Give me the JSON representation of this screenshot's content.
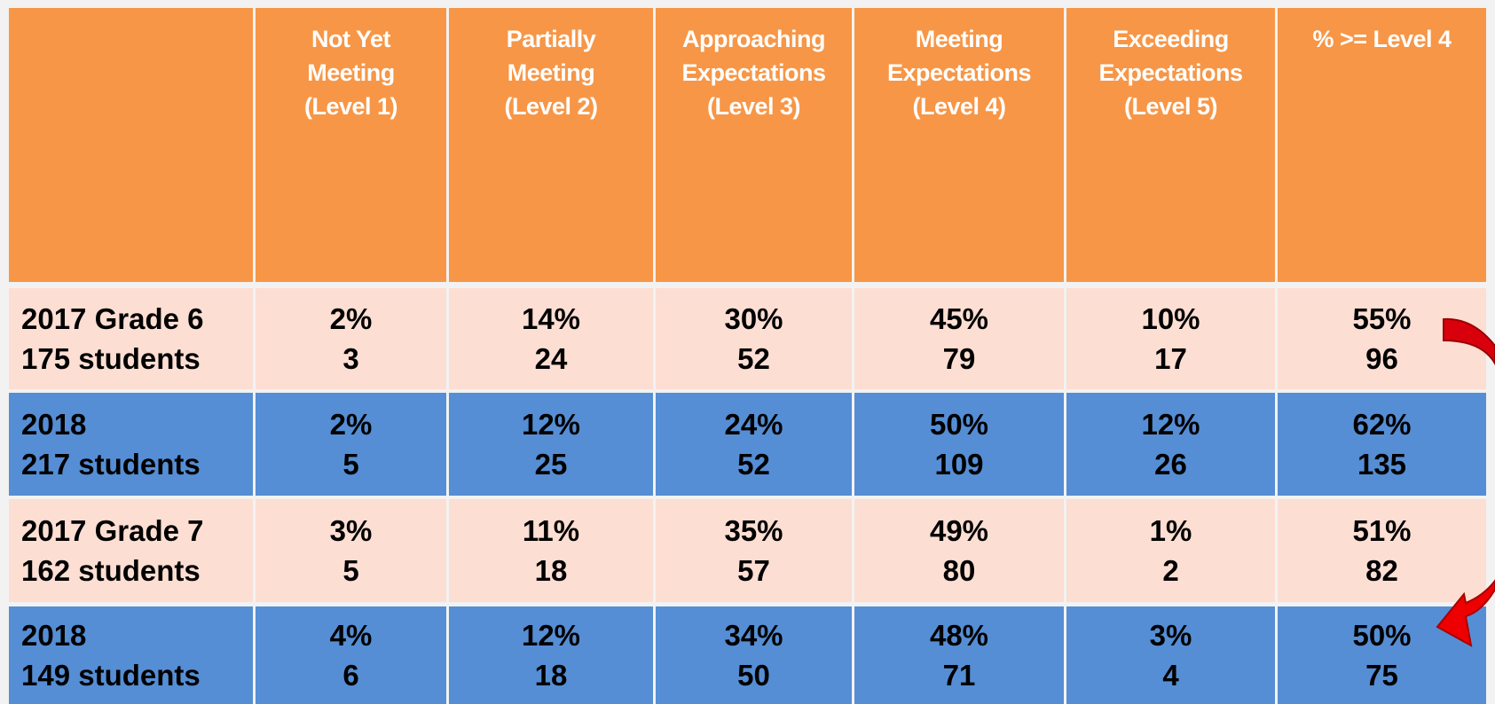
{
  "table": {
    "header": [
      [],
      [
        "Not Yet",
        "Meeting",
        "(Level 1)"
      ],
      [
        "Partially",
        "Meeting",
        "(Level 2)"
      ],
      [
        "Approaching",
        "Expectations",
        "(Level 3)"
      ],
      [
        "Meeting",
        "Expectations",
        "(Level 4)"
      ],
      [
        "Exceeding",
        "Expectations",
        "(Level 5)"
      ],
      [
        "% >= Level 4"
      ]
    ],
    "rows": [
      [
        [
          "2017 Grade 6",
          "175 students"
        ],
        [
          "2%",
          "3"
        ],
        [
          "14%",
          "24"
        ],
        [
          "30%",
          "52"
        ],
        [
          "45%",
          "79"
        ],
        [
          "10%",
          "17"
        ],
        [
          "55%",
          "96"
        ]
      ],
      [
        [
          "2018",
          "217 students"
        ],
        [
          "2%",
          "5"
        ],
        [
          "12%",
          "25"
        ],
        [
          "24%",
          "52"
        ],
        [
          "50%",
          "109"
        ],
        [
          "12%",
          "26"
        ],
        [
          "62%",
          "135"
        ]
      ],
      [
        [
          "2017 Grade 7",
          "162 students"
        ],
        [
          "3%",
          "5"
        ],
        [
          "11%",
          "18"
        ],
        [
          "35%",
          "57"
        ],
        [
          "49%",
          "80"
        ],
        [
          "1%",
          "2"
        ],
        [
          "51%",
          "82"
        ]
      ],
      [
        [
          "2018",
          "149 students"
        ],
        [
          "4%",
          "6"
        ],
        [
          "12%",
          "18"
        ],
        [
          "34%",
          "50"
        ],
        [
          "48%",
          "71"
        ],
        [
          "3%",
          "4"
        ],
        [
          "50%",
          "75"
        ]
      ]
    ]
  }
}
